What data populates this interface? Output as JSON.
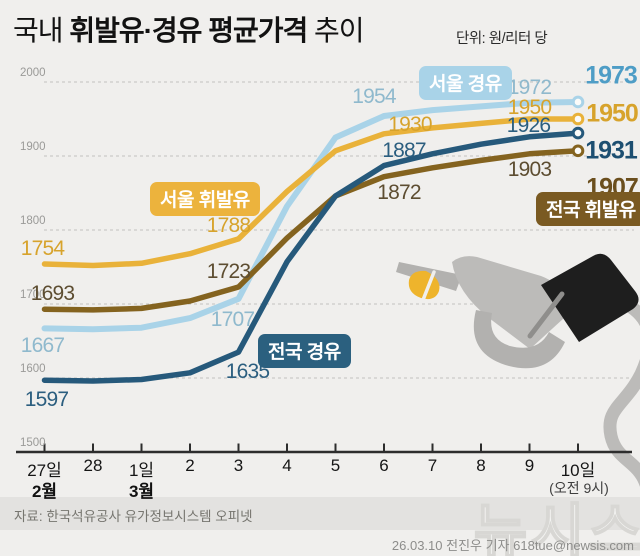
{
  "title": {
    "prefix": "국내 ",
    "emphasis": "휘발유·경유 평균가격",
    "suffix": " 추이",
    "unit_label": "단위: 원/리터 당"
  },
  "chart_data": {
    "type": "line",
    "title": "국내 휘발유·경유 평균가격 추이",
    "unit": "원/리터 당",
    "x_labels": [
      "27일",
      "28",
      "1일",
      "2",
      "3",
      "4",
      "5",
      "6",
      "7",
      "8",
      "9",
      "10일"
    ],
    "x_month_labels": [
      {
        "tick_index": 0,
        "label": "2월"
      },
      {
        "tick_index": 2,
        "label": "3월"
      }
    ],
    "x_note": {
      "tick_index": 11,
      "label": "(오전 9시)"
    },
    "ylim": [
      1500,
      2000
    ],
    "yticks": [
      1500,
      1600,
      1700,
      1800,
      1900,
      2000
    ],
    "grid": true,
    "legend_position": "inline-badges",
    "series": [
      {
        "id": "seoul-diesel",
        "name": "서울 경유",
        "color": "#a9d3e8",
        "label_color": "#8fb9cd",
        "final_color": "#4e9dc6",
        "values": [
          1667,
          1666,
          1668,
          1681,
          1707,
          1832,
          1925,
          1954,
          1962,
          1967,
          1972,
          1973
        ],
        "labeled_points": [
          {
            "x": "27일",
            "value": 1667
          },
          {
            "x": "3",
            "value": 1707
          },
          {
            "x": "6",
            "value": 1954
          },
          {
            "x": "9",
            "value": 1972
          },
          {
            "x": "10일",
            "value": 1973
          }
        ]
      },
      {
        "id": "seoul-gasoline",
        "name": "서울 휘발유",
        "color": "#e9b23a",
        "label_color": "#d7a32c",
        "final_color": "#d7a32c",
        "values": [
          1754,
          1752,
          1755,
          1768,
          1788,
          1852,
          1907,
          1930,
          1938,
          1944,
          1950,
          1950
        ],
        "labeled_points": [
          {
            "x": "27일",
            "value": 1754
          },
          {
            "x": "3",
            "value": 1788
          },
          {
            "x": "6",
            "value": 1930
          },
          {
            "x": "9",
            "value": 1950
          },
          {
            "x": "10일",
            "value": 1950
          }
        ]
      },
      {
        "id": "national-gasoline",
        "name": "전국 휘발유",
        "color": "#84631f",
        "label_color": "#5d4d31",
        "final_color": "#6b4f1e",
        "values": [
          1693,
          1692,
          1694,
          1704,
          1723,
          1789,
          1846,
          1872,
          1884,
          1894,
          1903,
          1907
        ],
        "labeled_points": [
          {
            "x": "27일",
            "value": 1693
          },
          {
            "x": "3",
            "value": 1723
          },
          {
            "x": "6",
            "value": 1872
          },
          {
            "x": "9",
            "value": 1903
          },
          {
            "x": "10일",
            "value": 1907
          }
        ]
      },
      {
        "id": "national-diesel",
        "name": "전국 경유",
        "color": "#26597b",
        "label_color": "#2b5e7f",
        "final_color": "#1d4f71",
        "values": [
          1597,
          1596,
          1598,
          1607,
          1635,
          1757,
          1846,
          1887,
          1903,
          1916,
          1926,
          1931
        ],
        "labeled_points": [
          {
            "x": "27일",
            "value": 1597
          },
          {
            "x": "3",
            "value": 1635
          },
          {
            "x": "6",
            "value": 1887
          },
          {
            "x": "9",
            "value": 1926
          },
          {
            "x": "10일",
            "value": 1931
          }
        ]
      }
    ]
  },
  "y_axis_tick_labels": [
    "1500",
    "1600",
    "1700",
    "1800",
    "1900",
    "2000"
  ],
  "legend_badges": [
    {
      "id": "seoul-diesel",
      "label": "서울 경유",
      "bg": "#a9d3e8",
      "text_color": "#ffffff"
    },
    {
      "id": "seoul-gasoline",
      "label": "서울 휘발유",
      "bg": "#ecb33d",
      "text_color": "#ffffff"
    },
    {
      "id": "national-diesel",
      "label": "전국 경유",
      "bg": "#2b607f",
      "text_color": "#ffffff"
    },
    {
      "id": "national-gasoline",
      "label": "전국 휘발유",
      "bg": "#7a5a22",
      "text_color": "#ffffff"
    }
  ],
  "footer": {
    "source": "자료: 한국석유공사 유가정보시스템 오피넷",
    "credit": "26.03.10 전진우 기자 618tue@newsis.com",
    "watermark": "뉴시스"
  },
  "icon_colors": {
    "drop": "#eeb42c",
    "nozzle_gray": "#bcbbb9",
    "nozzle_gray_dark": "#b2b1af",
    "nozzle_black": "#1e1e1e"
  }
}
